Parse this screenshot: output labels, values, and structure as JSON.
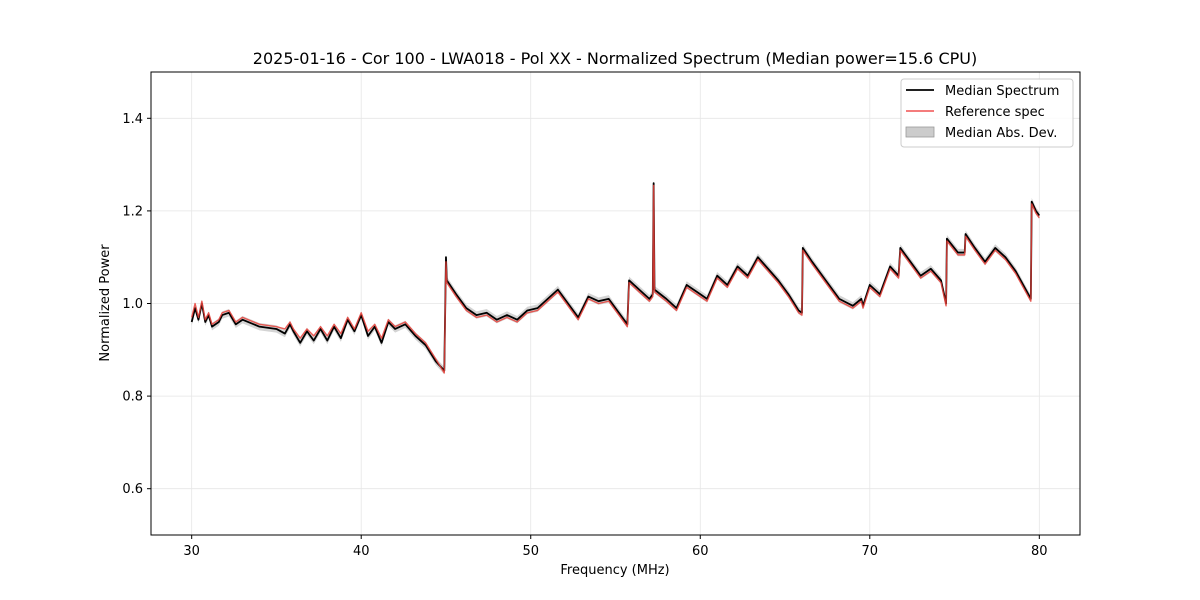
{
  "chart_data": {
    "type": "line",
    "title": "2025-01-16 - Cor 100 - LWA018 - Pol XX - Normalized Spectrum (Median power=15.6 CPU)",
    "xlabel": "Frequency (MHz)",
    "ylabel": "Normalized Power",
    "xlim": [
      27.6,
      82.4
    ],
    "ylim": [
      0.5,
      1.5
    ],
    "xticks": [
      30,
      40,
      50,
      60,
      70,
      80
    ],
    "yticks": [
      0.6,
      0.8,
      1.0,
      1.2,
      1.4
    ],
    "xtick_labels": [
      "30",
      "40",
      "50",
      "60",
      "70",
      "80"
    ],
    "ytick_labels": [
      "0.6",
      "0.8",
      "1.0",
      "1.2",
      "1.4"
    ],
    "grid": true,
    "legend_position": "top-right",
    "colors": {
      "median": "#000000",
      "reference": "#e8413a",
      "mad": "#b0b0b0"
    },
    "legend": [
      {
        "label": "Median Spectrum",
        "kind": "line",
        "color": "#000000"
      },
      {
        "label": "Reference spec",
        "kind": "line",
        "color": "#f05050"
      },
      {
        "label": "Median Abs. Dev.",
        "kind": "patch",
        "color": "#cccccc"
      }
    ],
    "series": [
      {
        "name": "Median Spectrum",
        "x": [
          30.0,
          30.2,
          30.4,
          30.6,
          30.8,
          31.0,
          31.2,
          31.6,
          31.8,
          32.2,
          32.6,
          33.0,
          34.0,
          35.0,
          35.5,
          35.8,
          36.0,
          36.4,
          36.8,
          37.2,
          37.6,
          38.0,
          38.4,
          38.8,
          39.2,
          39.6,
          40.0,
          40.4,
          40.8,
          41.2,
          41.6,
          42.0,
          42.6,
          43.2,
          43.8,
          44.4,
          44.9,
          45.0,
          45.05,
          45.6,
          46.2,
          46.8,
          47.4,
          48.0,
          48.6,
          49.2,
          49.8,
          50.4,
          51.0,
          51.6,
          52.2,
          52.8,
          53.4,
          54.0,
          54.6,
          55.2,
          55.7,
          55.8,
          56.4,
          57.0,
          57.2,
          57.25,
          57.3,
          58.0,
          58.6,
          59.2,
          59.8,
          60.4,
          61.0,
          61.6,
          62.2,
          62.8,
          63.4,
          64.0,
          64.6,
          65.2,
          65.8,
          66.0,
          66.05,
          66.6,
          67.4,
          68.2,
          69.0,
          69.5,
          69.6,
          70.0,
          70.6,
          71.2,
          71.7,
          71.8,
          72.4,
          73.0,
          73.6,
          74.2,
          74.5,
          74.55,
          75.2,
          75.6,
          75.65,
          76.2,
          76.8,
          77.4,
          78.0,
          78.6,
          79.2,
          79.5,
          79.55,
          79.8,
          80.0
        ],
        "values": [
          0.96,
          0.99,
          0.965,
          1.0,
          0.96,
          0.975,
          0.95,
          0.96,
          0.975,
          0.98,
          0.955,
          0.965,
          0.95,
          0.945,
          0.935,
          0.955,
          0.94,
          0.915,
          0.94,
          0.92,
          0.945,
          0.92,
          0.95,
          0.925,
          0.965,
          0.94,
          0.975,
          0.93,
          0.95,
          0.915,
          0.96,
          0.945,
          0.955,
          0.93,
          0.91,
          0.875,
          0.855,
          1.1,
          1.05,
          1.02,
          0.99,
          0.975,
          0.98,
          0.965,
          0.975,
          0.965,
          0.985,
          0.99,
          1.01,
          1.03,
          1.0,
          0.97,
          1.015,
          1.005,
          1.01,
          0.98,
          0.955,
          1.05,
          1.03,
          1.01,
          1.02,
          1.26,
          1.03,
          1.01,
          0.99,
          1.04,
          1.025,
          1.01,
          1.06,
          1.04,
          1.08,
          1.06,
          1.1,
          1.075,
          1.05,
          1.02,
          0.985,
          0.98,
          1.12,
          1.09,
          1.05,
          1.01,
          0.995,
          1.01,
          0.995,
          1.04,
          1.02,
          1.08,
          1.06,
          1.12,
          1.09,
          1.06,
          1.075,
          1.05,
          1.0,
          1.14,
          1.11,
          1.11,
          1.15,
          1.12,
          1.09,
          1.12,
          1.1,
          1.07,
          1.03,
          1.01,
          1.22,
          1.2,
          1.19
        ]
      },
      {
        "name": "Reference spec",
        "x": [
          30.0,
          30.2,
          30.4,
          30.6,
          30.8,
          31.0,
          31.2,
          31.6,
          31.8,
          32.2,
          32.6,
          33.0,
          34.0,
          35.0,
          35.5,
          35.8,
          36.0,
          36.4,
          36.8,
          37.2,
          37.6,
          38.0,
          38.4,
          38.8,
          39.2,
          39.6,
          40.0,
          40.4,
          40.8,
          41.2,
          41.6,
          42.0,
          42.6,
          43.2,
          43.8,
          44.4,
          44.9,
          45.0,
          45.05,
          45.6,
          46.2,
          46.8,
          47.4,
          48.0,
          48.6,
          49.2,
          49.8,
          50.4,
          51.0,
          51.6,
          52.2,
          52.8,
          53.4,
          54.0,
          54.6,
          55.2,
          55.7,
          55.8,
          56.4,
          57.0,
          57.2,
          57.25,
          57.3,
          58.0,
          58.6,
          59.2,
          59.8,
          60.4,
          61.0,
          61.6,
          62.2,
          62.8,
          63.4,
          64.0,
          64.6,
          65.2,
          65.8,
          66.0,
          66.05,
          66.6,
          67.4,
          68.2,
          69.0,
          69.5,
          69.6,
          70.0,
          70.6,
          71.2,
          71.7,
          71.8,
          72.4,
          73.0,
          73.6,
          74.2,
          74.5,
          74.55,
          75.2,
          75.6,
          75.65,
          76.2,
          76.8,
          77.4,
          78.0,
          78.6,
          79.2,
          79.5,
          79.55,
          79.8,
          80.0
        ],
        "values": [
          0.97,
          1.0,
          0.97,
          1.005,
          0.965,
          0.98,
          0.955,
          0.965,
          0.98,
          0.985,
          0.96,
          0.97,
          0.955,
          0.95,
          0.945,
          0.96,
          0.945,
          0.925,
          0.945,
          0.93,
          0.95,
          0.93,
          0.955,
          0.935,
          0.97,
          0.945,
          0.98,
          0.94,
          0.955,
          0.925,
          0.965,
          0.95,
          0.96,
          0.935,
          0.915,
          0.88,
          0.85,
          1.09,
          1.045,
          1.015,
          0.985,
          0.97,
          0.975,
          0.96,
          0.97,
          0.96,
          0.98,
          0.985,
          1.005,
          1.025,
          0.995,
          0.965,
          1.01,
          1.0,
          1.005,
          0.975,
          0.95,
          1.045,
          1.025,
          1.005,
          1.015,
          1.255,
          1.025,
          1.005,
          0.985,
          1.035,
          1.02,
          1.005,
          1.055,
          1.035,
          1.075,
          1.055,
          1.095,
          1.07,
          1.045,
          1.015,
          0.98,
          0.975,
          1.115,
          1.085,
          1.045,
          1.005,
          0.99,
          1.005,
          0.99,
          1.035,
          1.015,
          1.075,
          1.055,
          1.115,
          1.085,
          1.055,
          1.07,
          1.045,
          0.995,
          1.135,
          1.105,
          1.105,
          1.145,
          1.115,
          1.085,
          1.115,
          1.095,
          1.065,
          1.025,
          1.005,
          1.215,
          1.195,
          1.185
        ]
      }
    ],
    "mad_band": {
      "label": "Median Abs. Dev.",
      "halfwidth": 0.008
    }
  }
}
